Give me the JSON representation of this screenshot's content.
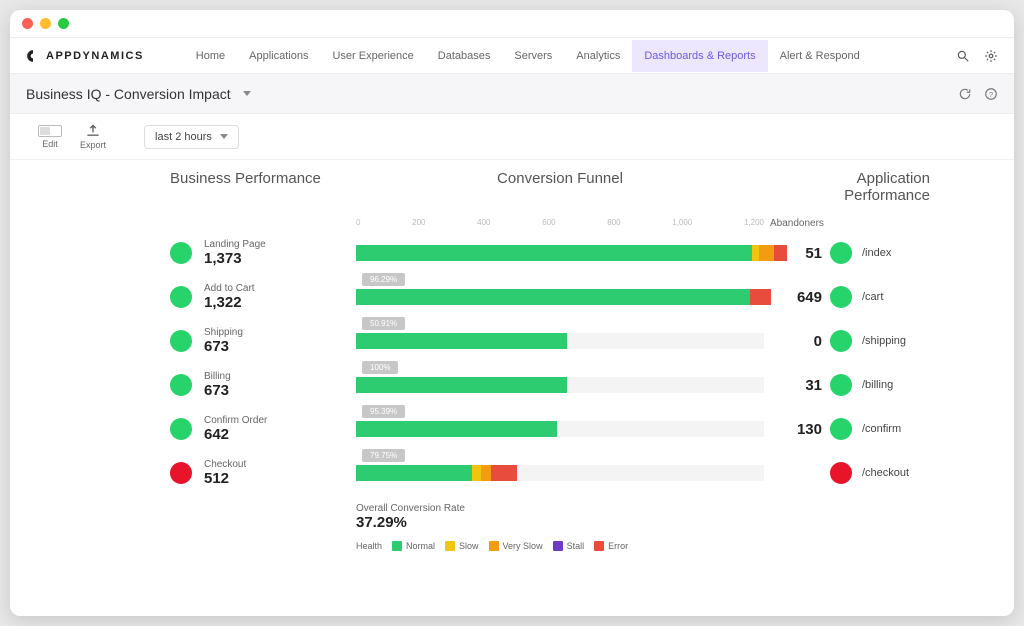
{
  "brand": "APPDYNAMICS",
  "nav": {
    "items": [
      "Home",
      "Applications",
      "User Experience",
      "Databases",
      "Servers",
      "Analytics",
      "Dashboards & Reports",
      "Alert & Respond"
    ],
    "active_index": 6
  },
  "subheader": {
    "title": "Business IQ - Conversion Impact"
  },
  "toolbar": {
    "edit": "Edit",
    "export": "Export",
    "timerange": "last 2 hours"
  },
  "section_titles": {
    "business": "Business Performance",
    "funnel": "Conversion Funnel",
    "app": "Application Performance"
  },
  "abandoners_label": "Abandoners",
  "axis": {
    "max": 1300,
    "ticks": [
      "0",
      "200",
      "400",
      "600",
      "800",
      "1,000",
      "1,200"
    ]
  },
  "colors": {
    "normal": "#2ecc71",
    "slow": "#f1c40f",
    "veryslow": "#f39c12",
    "stall": "#6c3cc4",
    "error": "#e74c3c",
    "health_ok": "#27d36b",
    "health_bad": "#e8152a",
    "bar_bg": "#f4f4f4",
    "connector": "#ececec"
  },
  "steps": [
    {
      "label": "Landing Page",
      "value": 1373,
      "value_str": "1,373",
      "abandoners": 51,
      "health": "ok",
      "pct_from_prev": null,
      "segments": [
        {
          "c": "normal",
          "w": 0.92
        },
        {
          "c": "slow",
          "w": 0.015
        },
        {
          "c": "veryslow",
          "w": 0.035
        },
        {
          "c": "error",
          "w": 0.03
        }
      ],
      "app_label": "/index",
      "app_health": "ok"
    },
    {
      "label": "Add to Cart",
      "value": 1322,
      "value_str": "1,322",
      "abandoners": 649,
      "health": "ok",
      "pct_from_prev": "96.29%",
      "segments": [
        {
          "c": "normal",
          "w": 0.95
        },
        {
          "c": "error",
          "w": 0.05
        }
      ],
      "app_label": "/cart",
      "app_health": "ok"
    },
    {
      "label": "Shipping",
      "value": 673,
      "value_str": "673",
      "abandoners": 0,
      "health": "ok",
      "pct_from_prev": "50.91%",
      "segments": [
        {
          "c": "normal",
          "w": 1.0
        }
      ],
      "app_label": "/shipping",
      "app_health": "ok"
    },
    {
      "label": "Billing",
      "value": 673,
      "value_str": "673",
      "abandoners": 31,
      "health": "ok",
      "pct_from_prev": "100%",
      "segments": [
        {
          "c": "normal",
          "w": 1.0
        }
      ],
      "app_label": "/billing",
      "app_health": "ok"
    },
    {
      "label": "Confirm Order",
      "value": 642,
      "value_str": "642",
      "abandoners": 130,
      "health": "ok",
      "pct_from_prev": "95.39%",
      "segments": [
        {
          "c": "normal",
          "w": 1.0
        }
      ],
      "app_label": "/confirm",
      "app_health": "ok"
    },
    {
      "label": "Checkout",
      "value": 512,
      "value_str": "512",
      "abandoners": null,
      "health": "bad",
      "pct_from_prev": "79.75%",
      "segments": [
        {
          "c": "normal",
          "w": 0.72
        },
        {
          "c": "slow",
          "w": 0.06
        },
        {
          "c": "veryslow",
          "w": 0.06
        },
        {
          "c": "error",
          "w": 0.16
        }
      ],
      "app_label": "/checkout",
      "app_health": "bad"
    }
  ],
  "overall": {
    "label": "Overall Conversion Rate",
    "value": "37.29%"
  },
  "legend": {
    "title": "Health",
    "items": [
      {
        "label": "Normal",
        "color": "#2ecc71"
      },
      {
        "label": "Slow",
        "color": "#f1c40f"
      },
      {
        "label": "Very Slow",
        "color": "#f39c12"
      },
      {
        "label": "Stall",
        "color": "#6c3cc4"
      },
      {
        "label": "Error",
        "color": "#e74c3c"
      }
    ]
  }
}
